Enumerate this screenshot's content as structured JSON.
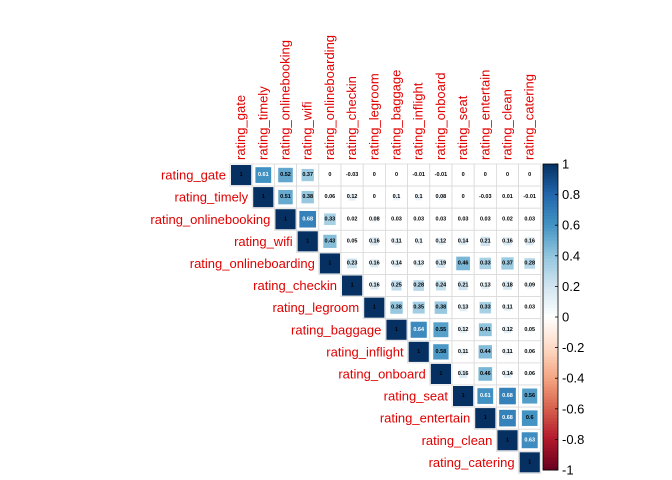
{
  "chart_data": {
    "type": "heatmap",
    "variables": [
      "rating_gate",
      "rating_timely",
      "rating_onlinebooking",
      "rating_wifi",
      "rating_onlineboarding",
      "rating_checkin",
      "rating_legroom",
      "rating_baggage",
      "rating_inflight",
      "rating_onboard",
      "rating_seat",
      "rating_entertain",
      "rating_clean",
      "rating_catering"
    ],
    "matrix": [
      [
        1,
        0.61,
        0.52,
        0.37,
        0,
        -0.03,
        0,
        0,
        -0.01,
        -0.01,
        0,
        0,
        0,
        0
      ],
      [
        null,
        1,
        0.51,
        0.38,
        0.06,
        0.12,
        0,
        0.1,
        0.1,
        0.08,
        0,
        -0.03,
        0.01,
        -0.01
      ],
      [
        null,
        null,
        1,
        0.68,
        0.33,
        0.02,
        0.08,
        0.03,
        0.03,
        0.03,
        0.03,
        0.03,
        0.02,
        0.03
      ],
      [
        null,
        null,
        null,
        1,
        0.43,
        0.05,
        0.16,
        0.11,
        0.1,
        0.12,
        0.14,
        0.21,
        0.16,
        0.16
      ],
      [
        null,
        null,
        null,
        null,
        1,
        0.23,
        0.16,
        0.14,
        0.13,
        0.19,
        0.46,
        0.33,
        0.37,
        0.28
      ],
      [
        null,
        null,
        null,
        null,
        null,
        1,
        0.16,
        0.25,
        0.28,
        0.24,
        0.21,
        0.13,
        0.18,
        0.09
      ],
      [
        null,
        null,
        null,
        null,
        null,
        null,
        1,
        0.38,
        0.35,
        0.38,
        0.13,
        0.33,
        0.11,
        0.03
      ],
      [
        null,
        null,
        null,
        null,
        null,
        null,
        null,
        1,
        0.64,
        0.55,
        0.12,
        0.41,
        0.12,
        0.05
      ],
      [
        null,
        null,
        null,
        null,
        null,
        null,
        null,
        null,
        1,
        0.58,
        0.11,
        0.44,
        0.11,
        0.06
      ],
      [
        null,
        null,
        null,
        null,
        null,
        null,
        null,
        null,
        null,
        1,
        0.16,
        0.46,
        0.14,
        0.06
      ],
      [
        null,
        null,
        null,
        null,
        null,
        null,
        null,
        null,
        null,
        null,
        1,
        0.61,
        0.68,
        0.56
      ],
      [
        null,
        null,
        null,
        null,
        null,
        null,
        null,
        null,
        null,
        null,
        null,
        1,
        0.68,
        0.6
      ],
      [
        null,
        null,
        null,
        null,
        null,
        null,
        null,
        null,
        null,
        null,
        null,
        null,
        1,
        0.63
      ],
      [
        null,
        null,
        null,
        null,
        null,
        null,
        null,
        null,
        null,
        null,
        null,
        null,
        null,
        1
      ]
    ],
    "color_scale": {
      "range": [
        -1,
        1
      ],
      "ticks": [
        "1",
        "0.8",
        "0.6",
        "0.4",
        "0.2",
        "0",
        "-0.2",
        "-0.4",
        "-0.6",
        "-0.8",
        "-1"
      ],
      "low_color": "#67001f",
      "mid_color": "#ffffff",
      "high_color": "#053061"
    },
    "label_color": "#e00000"
  }
}
